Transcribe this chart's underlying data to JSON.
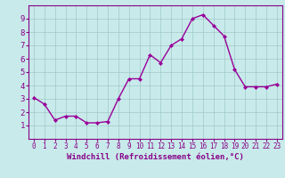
{
  "x": [
    0,
    1,
    2,
    3,
    4,
    5,
    6,
    7,
    8,
    9,
    10,
    11,
    12,
    13,
    14,
    15,
    16,
    17,
    18,
    19,
    20,
    21,
    22,
    23
  ],
  "y": [
    3.1,
    2.6,
    1.4,
    1.7,
    1.7,
    1.2,
    1.2,
    1.3,
    3.0,
    4.5,
    4.5,
    6.3,
    5.7,
    7.0,
    7.5,
    9.0,
    9.3,
    8.5,
    7.7,
    5.2,
    3.9,
    3.9,
    3.9,
    4.1
  ],
  "line_color": "#990099",
  "marker": "D",
  "marker_size": 2.0,
  "bg_color": "#c8eaea",
  "grid_color": "#a0c8c8",
  "xlabel": "Windchill (Refroidissement éolien,°C)",
  "xlim": [
    -0.5,
    23.5
  ],
  "ylim": [
    0,
    10
  ],
  "yticks": [
    1,
    2,
    3,
    4,
    5,
    6,
    7,
    8,
    9
  ],
  "xticks": [
    0,
    1,
    2,
    3,
    4,
    5,
    6,
    7,
    8,
    9,
    10,
    11,
    12,
    13,
    14,
    15,
    16,
    17,
    18,
    19,
    20,
    21,
    22,
    23
  ],
  "tick_label_color": "#880088",
  "spine_color": "#880088",
  "xlabel_color": "#880088",
  "xlabel_fontsize": 6.5,
  "xtick_fontsize": 5.5,
  "ytick_fontsize": 6.5,
  "linewidth": 1.0
}
